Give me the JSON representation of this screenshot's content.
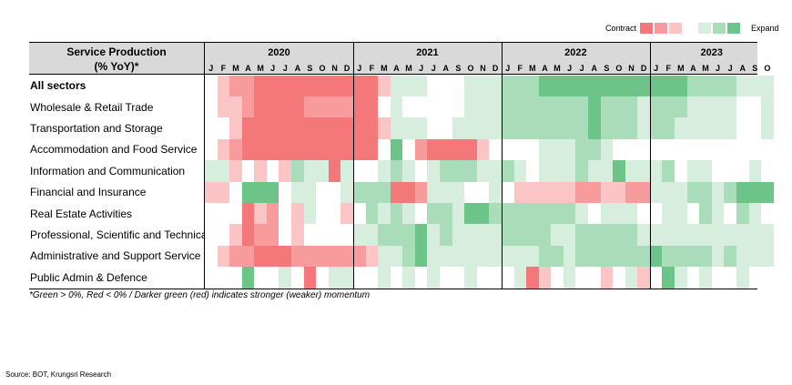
{
  "legend": {
    "contract_label": "Contract",
    "expand_label": "Expand",
    "swatches": [
      "#f4777a",
      "#f79b9d",
      "#fbc4c5",
      "#ffffff",
      "#d7eedf",
      "#a9dcb9",
      "#6cc488"
    ]
  },
  "header": {
    "title_line1": "Service Production",
    "title_line2": "(% YoY)*"
  },
  "years": [
    "2020",
    "2021",
    "2022",
    "2023"
  ],
  "month_letters": [
    "J",
    "F",
    "M",
    "A",
    "M",
    "J",
    "J",
    "A",
    "S",
    "O",
    "N",
    "D"
  ],
  "note": "*Green > 0%, Red < 0% / Darker green (red) indicates stronger (weaker) momentum",
  "source": "Source: BOT, Krungsri Research",
  "chart_data": {
    "type": "heatmap",
    "title": "Service Production (% YoY)*",
    "color_scale": "momentum levels: -3 strongest contraction (red) to +3 strongest expansion (green)",
    "periods_note": "Columns run Jan 2020 to Oct 2023 (46 months)",
    "rows": [
      {
        "name": "All sectors",
        "values": [
          0,
          -1,
          -2,
          -2,
          -3,
          -3,
          -3,
          -3,
          -3,
          -3,
          -3,
          -3,
          -3,
          -3,
          -1,
          1,
          1,
          1,
          0,
          0,
          0,
          1,
          1,
          1,
          2,
          2,
          2,
          3,
          3,
          3,
          3,
          3,
          3,
          3,
          3,
          3,
          3,
          3,
          3,
          2,
          2,
          2,
          2,
          1,
          1,
          1
        ]
      },
      {
        "name": "Wholesale & Retail Trade",
        "values": [
          0,
          -1,
          -1,
          -2,
          -3,
          -3,
          -3,
          -3,
          -2,
          -2,
          -2,
          -2,
          -3,
          -3,
          0,
          1,
          0,
          0,
          0,
          0,
          0,
          1,
          1,
          1,
          2,
          2,
          2,
          2,
          2,
          2,
          2,
          3,
          2,
          2,
          2,
          1,
          2,
          2,
          2,
          1,
          1,
          1,
          1,
          0,
          0,
          1
        ]
      },
      {
        "name": "Transportation and Storage",
        "values": [
          0,
          0,
          -1,
          -3,
          -3,
          -3,
          -3,
          -3,
          -3,
          -3,
          -3,
          -3,
          -3,
          -3,
          -1,
          1,
          1,
          1,
          0,
          0,
          1,
          1,
          1,
          1,
          2,
          2,
          2,
          2,
          2,
          2,
          2,
          3,
          2,
          2,
          2,
          1,
          2,
          2,
          1,
          1,
          1,
          1,
          1,
          0,
          0,
          1
        ]
      },
      {
        "name": "Accommodation and Food Service",
        "values": [
          0,
          -1,
          -2,
          -3,
          -3,
          -3,
          -3,
          -3,
          -3,
          -3,
          -3,
          -3,
          -3,
          -3,
          0,
          3,
          0,
          -2,
          -3,
          -3,
          -3,
          -3,
          -1,
          0,
          0,
          0,
          0,
          1,
          1,
          1,
          2,
          2,
          1,
          0,
          0,
          0,
          0,
          0,
          0,
          0,
          0,
          0,
          0,
          0,
          0,
          0
        ]
      },
      {
        "name": "Information and Communication",
        "values": [
          1,
          1,
          -1,
          0,
          -1,
          0,
          -1,
          2,
          1,
          1,
          -3,
          1,
          0,
          0,
          1,
          2,
          1,
          0,
          1,
          2,
          2,
          2,
          1,
          1,
          2,
          1,
          0,
          1,
          1,
          1,
          2,
          1,
          1,
          3,
          1,
          1,
          1,
          2,
          0,
          1,
          1,
          0,
          0,
          0,
          1,
          0
        ]
      },
      {
        "name": "Financial and Insurance",
        "values": [
          -1,
          -1,
          0,
          3,
          3,
          3,
          0,
          1,
          1,
          0,
          0,
          1,
          2,
          2,
          2,
          -3,
          -3,
          -2,
          1,
          1,
          1,
          0,
          0,
          1,
          0,
          -1,
          -1,
          -1,
          -1,
          -1,
          -2,
          -2,
          -1,
          -1,
          -2,
          -2,
          1,
          1,
          1,
          2,
          2,
          1,
          2,
          3,
          3,
          3
        ]
      },
      {
        "name": "Real Estate Activities",
        "values": [
          0,
          0,
          0,
          -3,
          -1,
          -2,
          0,
          -1,
          1,
          0,
          0,
          -1,
          0,
          2,
          1,
          2,
          1,
          0,
          2,
          2,
          1,
          3,
          3,
          2,
          2,
          2,
          2,
          2,
          2,
          2,
          1,
          0,
          1,
          1,
          1,
          0,
          0,
          1,
          1,
          0,
          2,
          1,
          0,
          2,
          1,
          0
        ]
      },
      {
        "name": "Professional, Scientific and Technical",
        "values": [
          0,
          0,
          -1,
          -3,
          -2,
          -2,
          0,
          -1,
          0,
          0,
          0,
          0,
          1,
          1,
          2,
          2,
          2,
          3,
          1,
          2,
          1,
          1,
          1,
          1,
          2,
          2,
          2,
          2,
          1,
          1,
          2,
          2,
          2,
          2,
          2,
          1,
          1,
          1,
          1,
          1,
          1,
          1,
          1,
          1,
          1,
          1
        ]
      },
      {
        "name": "Administrative and Support Service",
        "values": [
          0,
          -1,
          -2,
          -2,
          -3,
          -3,
          -3,
          -2,
          -2,
          -2,
          -2,
          -2,
          -2,
          -1,
          1,
          1,
          2,
          3,
          1,
          1,
          1,
          1,
          1,
          1,
          1,
          1,
          1,
          2,
          2,
          1,
          2,
          2,
          2,
          2,
          2,
          2,
          3,
          2,
          2,
          2,
          2,
          1,
          2,
          1,
          1,
          1
        ]
      },
      {
        "name": "Public Admin & Defence",
        "values": [
          0,
          0,
          0,
          3,
          0,
          0,
          1,
          0,
          -3,
          0,
          1,
          1,
          0,
          0,
          1,
          0,
          1,
          0,
          1,
          0,
          0,
          1,
          0,
          0,
          0,
          1,
          -3,
          -1,
          0,
          1,
          0,
          0,
          -1,
          0,
          1,
          -1,
          0,
          3,
          1,
          0,
          1,
          0,
          0,
          1,
          0,
          0
        ]
      }
    ]
  }
}
